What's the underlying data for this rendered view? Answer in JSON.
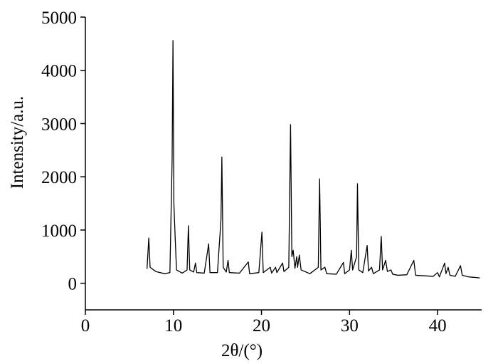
{
  "chart_data": {
    "type": "line",
    "xlabel": "2θ/(°)",
    "ylabel": "Intensity/a.u.",
    "xlim": [
      0,
      45
    ],
    "xticks": [
      0,
      10,
      20,
      30,
      40
    ],
    "ylim": [
      -500,
      5000
    ],
    "yticks": [
      0,
      1000,
      2000,
      3000,
      4000,
      5000
    ],
    "color": "#000000",
    "x": [
      7.0,
      7.2,
      7.35,
      8.0,
      9.0,
      9.6,
      9.85,
      9.95,
      10.05,
      10.2,
      10.35,
      11.0,
      11.55,
      11.7,
      11.85,
      12.3,
      12.5,
      12.65,
      13.5,
      14.0,
      14.15,
      15.0,
      15.4,
      15.5,
      15.65,
      16.0,
      16.2,
      16.35,
      17.5,
      18.5,
      18.65,
      19.7,
      20.05,
      20.2,
      21.0,
      21.15,
      21.6,
      21.75,
      22.4,
      22.55,
      23.1,
      23.3,
      23.45,
      23.6,
      23.8,
      24.0,
      24.1,
      24.3,
      24.5,
      25.5,
      26.45,
      26.6,
      26.75,
      27.2,
      27.4,
      28.5,
      29.3,
      29.45,
      30.0,
      30.2,
      30.35,
      30.8,
      30.9,
      31.05,
      31.5,
      32.0,
      32.15,
      32.5,
      32.7,
      33.4,
      33.6,
      33.75,
      34.1,
      34.3,
      34.7,
      34.9,
      35.5,
      36.5,
      37.3,
      37.5,
      38.5,
      39.5,
      40.0,
      40.2,
      40.8,
      40.95,
      41.2,
      41.4,
      42.0,
      42.6,
      42.8,
      43.5,
      44.2,
      44.8
    ],
    "values": [
      270,
      850,
      300,
      220,
      180,
      200,
      2300,
      4560,
      1500,
      850,
      250,
      190,
      250,
      1080,
      250,
      210,
      380,
      200,
      190,
      740,
      200,
      200,
      1200,
      2370,
      300,
      210,
      430,
      200,
      190,
      400,
      180,
      200,
      960,
      200,
      300,
      190,
      300,
      200,
      380,
      220,
      300,
      2980,
      500,
      620,
      280,
      500,
      300,
      530,
      250,
      180,
      300,
      1960,
      250,
      300,
      180,
      170,
      390,
      180,
      250,
      620,
      250,
      500,
      1870,
      250,
      200,
      710,
      230,
      300,
      180,
      250,
      880,
      250,
      430,
      220,
      250,
      170,
      150,
      160,
      430,
      150,
      140,
      130,
      200,
      120,
      380,
      180,
      300,
      150,
      130,
      330,
      150,
      120,
      110,
      100
    ]
  }
}
